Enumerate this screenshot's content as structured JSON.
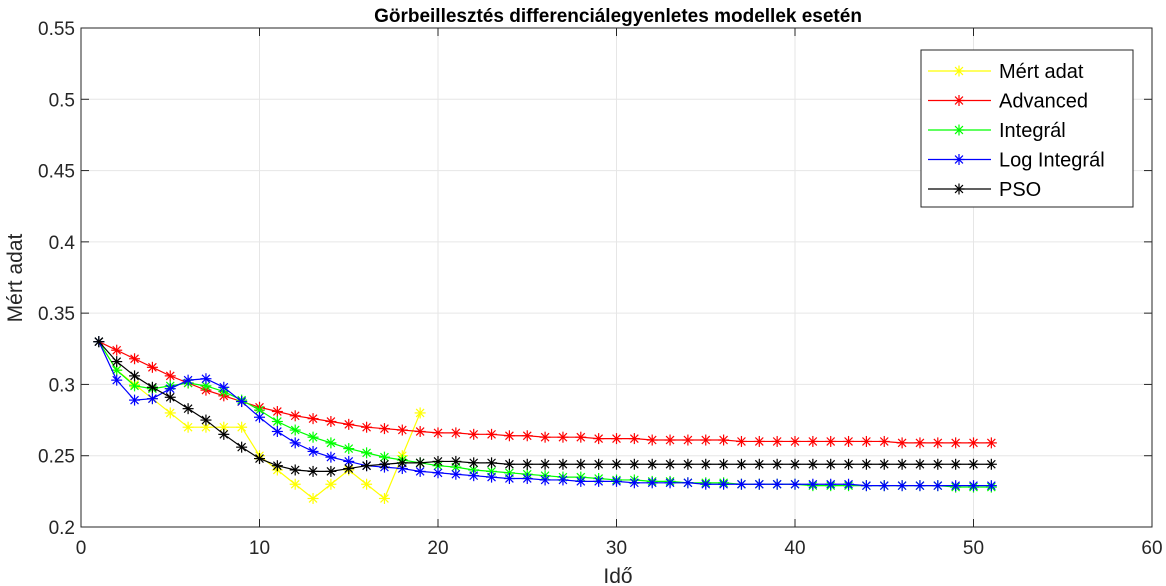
{
  "chart_data": {
    "type": "line",
    "title": "Görbeillesztés differenciálegyenletes modellek esetén",
    "xlabel": "Idő",
    "ylabel": "Mért adat",
    "xlim": [
      0,
      60
    ],
    "ylim": [
      0.2,
      0.55
    ],
    "xticks": [
      "0",
      "10",
      "20",
      "30",
      "40",
      "50",
      "60"
    ],
    "yticks": [
      "0.2",
      "0.25",
      "0.3",
      "0.35",
      "0.4",
      "0.45",
      "0.5",
      "0.55"
    ],
    "grid": true,
    "legend_position": "top-right",
    "marker": "asterisk",
    "series": [
      {
        "name": "Mért adat",
        "color": "#ffff00",
        "x": [
          1,
          2,
          3,
          4,
          5,
          6,
          7,
          8,
          9,
          10,
          11,
          12,
          13,
          14,
          15,
          16,
          17,
          18,
          19
        ],
        "y": [
          0.33,
          0.31,
          0.3,
          0.29,
          0.28,
          0.27,
          0.27,
          0.27,
          0.27,
          0.25,
          0.24,
          0.23,
          0.22,
          0.23,
          0.24,
          0.23,
          0.22,
          0.25,
          0.28
        ]
      },
      {
        "name": "Advanced",
        "color": "#ff0000",
        "x": [
          1,
          2,
          3,
          4,
          5,
          6,
          7,
          8,
          9,
          10,
          11,
          12,
          13,
          14,
          15,
          16,
          17,
          18,
          19,
          20,
          21,
          22,
          23,
          24,
          25,
          26,
          27,
          28,
          29,
          30,
          31,
          32,
          33,
          34,
          35,
          36,
          37,
          38,
          39,
          40,
          41,
          42,
          43,
          44,
          45,
          46,
          47,
          48,
          49,
          50,
          51
        ],
        "y": [
          0.33,
          0.324,
          0.318,
          0.312,
          0.306,
          0.301,
          0.296,
          0.292,
          0.288,
          0.284,
          0.281,
          0.278,
          0.276,
          0.274,
          0.272,
          0.27,
          0.269,
          0.268,
          0.267,
          0.266,
          0.266,
          0.265,
          0.265,
          0.264,
          0.264,
          0.263,
          0.263,
          0.263,
          0.262,
          0.262,
          0.262,
          0.261,
          0.261,
          0.261,
          0.261,
          0.261,
          0.26,
          0.26,
          0.26,
          0.26,
          0.26,
          0.26,
          0.26,
          0.26,
          0.26,
          0.259,
          0.259,
          0.259,
          0.259,
          0.259,
          0.259
        ]
      },
      {
        "name": "Integrál",
        "color": "#00ff00",
        "x": [
          1,
          2,
          3,
          4,
          5,
          6,
          7,
          8,
          9,
          10,
          11,
          12,
          13,
          14,
          15,
          16,
          17,
          18,
          19,
          20,
          21,
          22,
          23,
          24,
          25,
          26,
          27,
          28,
          29,
          30,
          31,
          32,
          33,
          34,
          35,
          36,
          37,
          38,
          39,
          40,
          41,
          42,
          43,
          44,
          45,
          46,
          47,
          48,
          49,
          50,
          51
        ],
        "y": [
          0.33,
          0.31,
          0.299,
          0.297,
          0.299,
          0.301,
          0.299,
          0.295,
          0.289,
          0.282,
          0.274,
          0.268,
          0.263,
          0.259,
          0.255,
          0.252,
          0.249,
          0.247,
          0.245,
          0.243,
          0.242,
          0.24,
          0.239,
          0.238,
          0.237,
          0.236,
          0.235,
          0.235,
          0.234,
          0.233,
          0.233,
          0.232,
          0.232,
          0.231,
          0.231,
          0.231,
          0.23,
          0.23,
          0.23,
          0.23,
          0.229,
          0.229,
          0.229,
          0.229,
          0.229,
          0.229,
          0.229,
          0.229,
          0.228,
          0.228,
          0.228
        ]
      },
      {
        "name": "Log Integrál",
        "color": "#0000ff",
        "x": [
          1,
          2,
          3,
          4,
          5,
          6,
          7,
          8,
          9,
          10,
          11,
          12,
          13,
          14,
          15,
          16,
          17,
          18,
          19,
          20,
          21,
          22,
          23,
          24,
          25,
          26,
          27,
          28,
          29,
          30,
          31,
          32,
          33,
          34,
          35,
          36,
          37,
          38,
          39,
          40,
          41,
          42,
          43,
          44,
          45,
          46,
          47,
          48,
          49,
          50,
          51
        ],
        "y": [
          0.33,
          0.303,
          0.289,
          0.29,
          0.297,
          0.303,
          0.304,
          0.298,
          0.288,
          0.277,
          0.267,
          0.259,
          0.253,
          0.249,
          0.246,
          0.243,
          0.242,
          0.241,
          0.239,
          0.238,
          0.237,
          0.236,
          0.235,
          0.234,
          0.234,
          0.233,
          0.233,
          0.232,
          0.232,
          0.232,
          0.231,
          0.231,
          0.231,
          0.231,
          0.23,
          0.23,
          0.23,
          0.23,
          0.23,
          0.23,
          0.23,
          0.23,
          0.23,
          0.229,
          0.229,
          0.229,
          0.229,
          0.229,
          0.229,
          0.229,
          0.229
        ]
      },
      {
        "name": "PSO",
        "color": "#000000",
        "x": [
          1,
          2,
          3,
          4,
          5,
          6,
          7,
          8,
          9,
          10,
          11,
          12,
          13,
          14,
          15,
          16,
          17,
          18,
          19,
          20,
          21,
          22,
          23,
          24,
          25,
          26,
          27,
          28,
          29,
          30,
          31,
          32,
          33,
          34,
          35,
          36,
          37,
          38,
          39,
          40,
          41,
          42,
          43,
          44,
          45,
          46,
          47,
          48,
          49,
          50,
          51
        ],
        "y": [
          0.33,
          0.316,
          0.306,
          0.298,
          0.291,
          0.283,
          0.275,
          0.265,
          0.256,
          0.248,
          0.243,
          0.24,
          0.239,
          0.239,
          0.241,
          0.243,
          0.244,
          0.245,
          0.245,
          0.246,
          0.246,
          0.245,
          0.245,
          0.244,
          0.244,
          0.244,
          0.244,
          0.244,
          0.244,
          0.244,
          0.244,
          0.244,
          0.244,
          0.244,
          0.244,
          0.244,
          0.244,
          0.244,
          0.244,
          0.244,
          0.244,
          0.244,
          0.244,
          0.244,
          0.244,
          0.244,
          0.244,
          0.244,
          0.244,
          0.244,
          0.244
        ]
      }
    ]
  }
}
